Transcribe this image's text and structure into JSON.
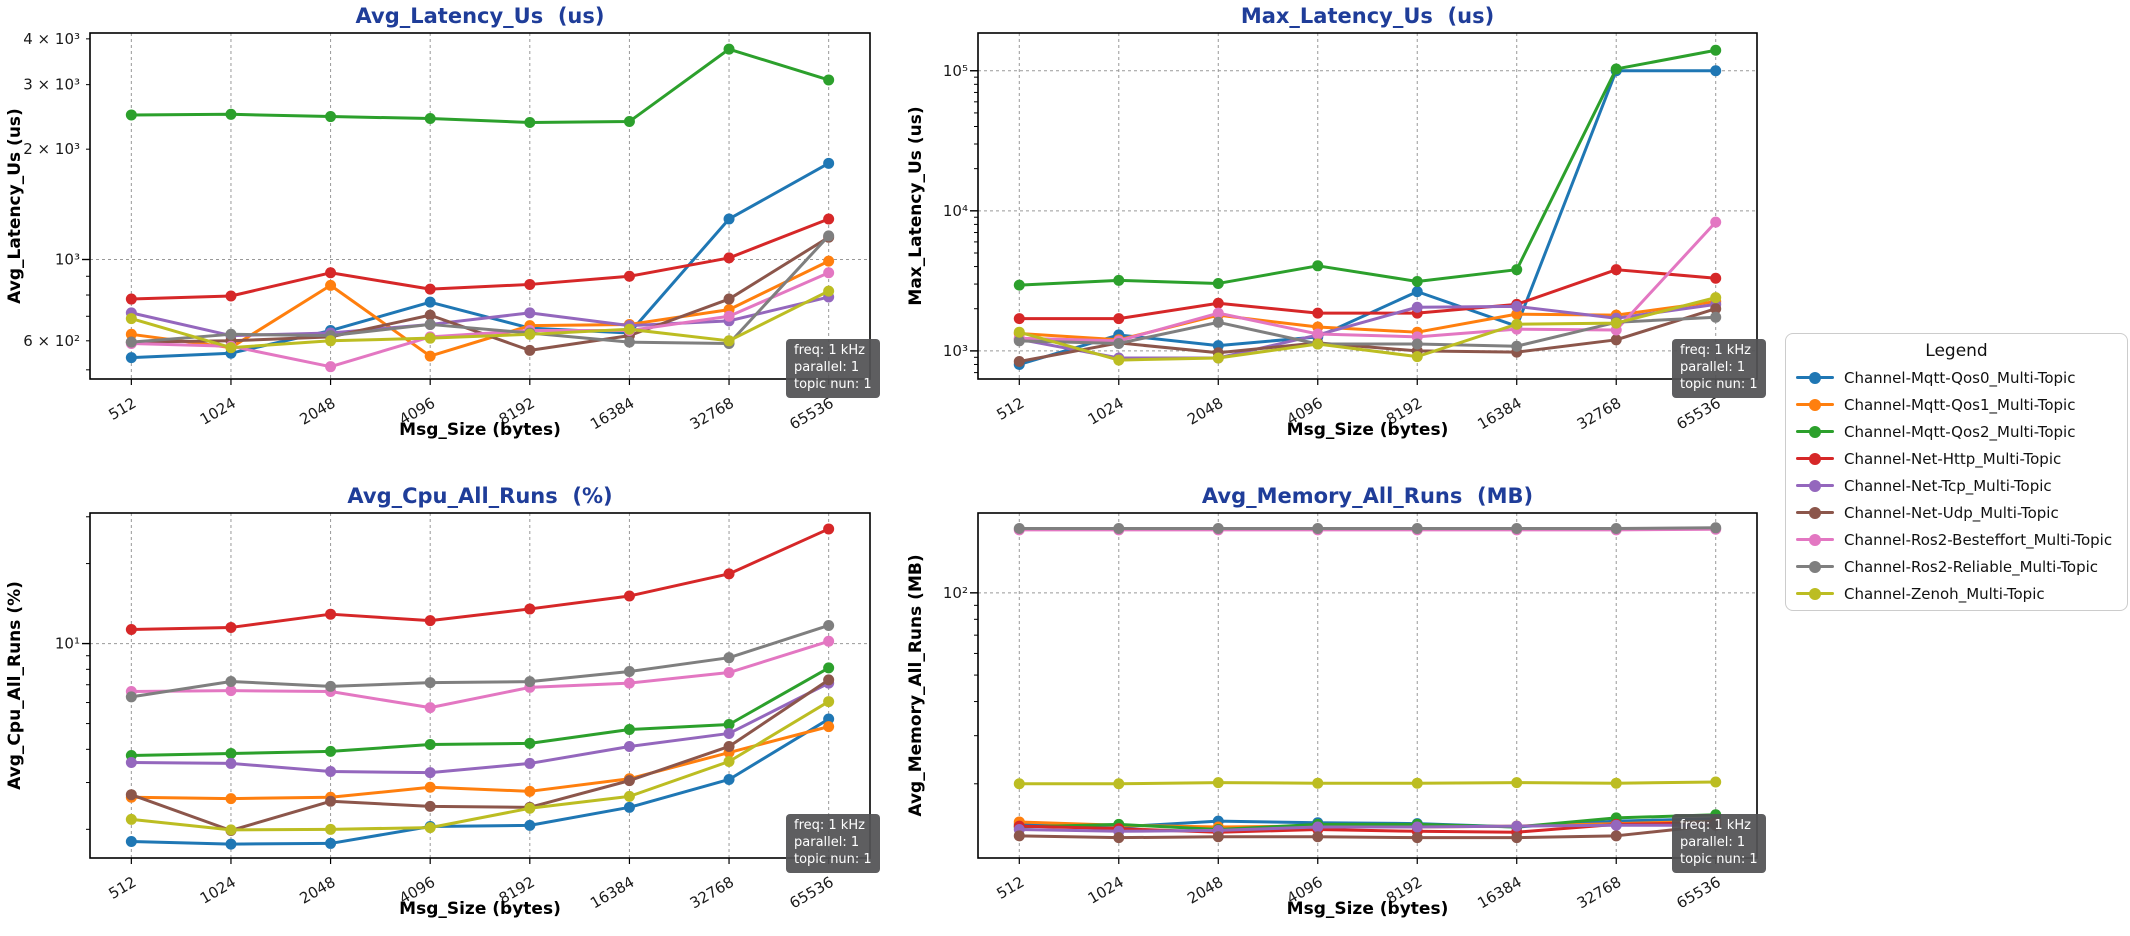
{
  "styles": {
    "title_color": "#1f3d99",
    "grid_color": "#999999",
    "annotation_bg": "#525254",
    "axis_color": "#000000",
    "tick_label_color": "#1a1a1a"
  },
  "annotation": {
    "line1": "freq: 1 kHz",
    "line2": "parallel: 1",
    "line3": "topic nun: 1"
  },
  "legend": {
    "title": "Legend",
    "entries": [
      {
        "label": "Channel-Mqtt-Qos0_Multi-Topic",
        "color": "#1f77b4"
      },
      {
        "label": "Channel-Mqtt-Qos1_Multi-Topic",
        "color": "#ff7f0e"
      },
      {
        "label": "Channel-Mqtt-Qos2_Multi-Topic",
        "color": "#2ca02c"
      },
      {
        "label": "Channel-Net-Http_Multi-Topic",
        "color": "#d62728"
      },
      {
        "label": "Channel-Net-Tcp_Multi-Topic",
        "color": "#9467bd"
      },
      {
        "label": "Channel-Net-Udp_Multi-Topic",
        "color": "#8c564b"
      },
      {
        "label": "Channel-Ros2-Besteffort_Multi-Topic",
        "color": "#e377c2"
      },
      {
        "label": "Channel-Ros2-Reliable_Multi-Topic",
        "color": "#7f7f7f"
      },
      {
        "label": "Channel-Zenoh_Multi-Topic",
        "color": "#bcbd22"
      }
    ]
  },
  "chart_data": [
    {
      "type": "line",
      "title": "Avg_Latency_Us  (us)",
      "xlabel": "Msg_Size (bytes)",
      "ylabel": "Avg_Latency_Us (us)",
      "yscale": "log",
      "ylim": [
        472,
        4150
      ],
      "grid": true,
      "grid_y": [
        1000
      ],
      "yticks": [
        {
          "v": 600,
          "label": "6 × 10²"
        },
        {
          "v": 1000,
          "label": "10³"
        },
        {
          "v": 2000,
          "label": "2 × 10³"
        },
        {
          "v": 3000,
          "label": "3 × 10³"
        },
        {
          "v": 4000,
          "label": "4 × 10³"
        }
      ],
      "categories": [
        "512",
        "1024",
        "2048",
        "4096",
        "8192",
        "16384",
        "32768",
        "65536"
      ],
      "series": [
        {
          "name": "Channel-Mqtt-Qos0_Multi-Topic",
          "color": "#1f77b4",
          "values": [
            540,
            555,
            640,
            765,
            650,
            630,
            1290,
            1830
          ]
        },
        {
          "name": "Channel-Mqtt-Qos1_Multi-Topic",
          "color": "#ff7f0e",
          "values": [
            625,
            575,
            850,
            545,
            660,
            665,
            730,
            990
          ]
        },
        {
          "name": "Channel-Mqtt-Qos2_Multi-Topic",
          "color": "#2ca02c",
          "values": [
            2480,
            2490,
            2455,
            2425,
            2365,
            2380,
            3750,
            3090
          ]
        },
        {
          "name": "Channel-Net-Http_Multi-Topic",
          "color": "#d62728",
          "values": [
            780,
            795,
            920,
            830,
            855,
            900,
            1010,
            1290
          ]
        },
        {
          "name": "Channel-Net-Tcp_Multi-Topic",
          "color": "#9467bd",
          "values": [
            715,
            620,
            630,
            665,
            715,
            660,
            680,
            790
          ]
        },
        {
          "name": "Channel-Net-Udp_Multi-Topic",
          "color": "#8c564b",
          "values": [
            595,
            600,
            615,
            705,
            565,
            620,
            780,
            1150
          ]
        },
        {
          "name": "Channel-Ros2-Besteffort_Multi-Topic",
          "color": "#e377c2",
          "values": [
            590,
            580,
            510,
            615,
            640,
            640,
            700,
            920
          ]
        },
        {
          "name": "Channel-Ros2-Reliable_Multi-Topic",
          "color": "#7f7f7f",
          "values": [
            595,
            625,
            620,
            665,
            630,
            595,
            590,
            1160
          ]
        },
        {
          "name": "Channel-Zenoh_Multi-Topic",
          "color": "#bcbd22",
          "values": [
            690,
            575,
            600,
            610,
            625,
            645,
            600,
            820
          ]
        }
      ]
    },
    {
      "type": "line",
      "title": "Max_Latency_Us  (us)",
      "xlabel": "Msg_Size (bytes)",
      "ylabel": "Max_Latency_Us (us)",
      "yscale": "log",
      "ylim": [
        630,
        186000
      ],
      "grid": true,
      "grid_y": [
        1000,
        10000,
        100000
      ],
      "yticks": [
        {
          "v": 1000,
          "label": "10³"
        },
        {
          "v": 10000,
          "label": "10⁴"
        },
        {
          "v": 100000,
          "label": "10⁵"
        }
      ],
      "categories": [
        "512",
        "1024",
        "2048",
        "4096",
        "8192",
        "16384",
        "32768",
        "65536"
      ],
      "series": [
        {
          "name": "Channel-Mqtt-Qos0_Multi-Topic",
          "color": "#1f77b4",
          "values": [
            800,
            1300,
            1090,
            1260,
            2650,
            1500,
            100000,
            100000
          ]
        },
        {
          "name": "Channel-Mqtt-Qos1_Multi-Topic",
          "color": "#ff7f0e",
          "values": [
            1330,
            1200,
            1800,
            1480,
            1360,
            1830,
            1800,
            2250
          ]
        },
        {
          "name": "Channel-Mqtt-Qos2_Multi-Topic",
          "color": "#2ca02c",
          "values": [
            2950,
            3190,
            3030,
            4050,
            3130,
            3800,
            103000,
            140000
          ]
        },
        {
          "name": "Channel-Net-Http_Multi-Topic",
          "color": "#d62728",
          "values": [
            1700,
            1700,
            2190,
            1860,
            1860,
            2150,
            3800,
            3300
          ]
        },
        {
          "name": "Channel-Net-Tcp_Multi-Topic",
          "color": "#9467bd",
          "values": [
            1210,
            890,
            890,
            1300,
            2050,
            2080,
            1710,
            2150
          ]
        },
        {
          "name": "Channel-Net-Udp_Multi-Topic",
          "color": "#8c564b",
          "values": [
            840,
            1140,
            970,
            1140,
            1000,
            980,
            1200,
            2000
          ]
        },
        {
          "name": "Channel-Ros2-Besteffort_Multi-Topic",
          "color": "#e377c2",
          "values": [
            1230,
            1180,
            1860,
            1320,
            1260,
            1430,
            1410,
            8300
          ]
        },
        {
          "name": "Channel-Ros2-Reliable_Multi-Topic",
          "color": "#7f7f7f",
          "values": [
            1180,
            1130,
            1600,
            1120,
            1120,
            1080,
            1600,
            1740
          ]
        },
        {
          "name": "Channel-Zenoh_Multi-Topic",
          "color": "#bcbd22",
          "values": [
            1360,
            860,
            890,
            1120,
            910,
            1550,
            1580,
            2400
          ]
        }
      ]
    },
    {
      "type": "line",
      "title": "Avg_Cpu_All_Runs  (%)",
      "xlabel": "Msg_Size (bytes)",
      "ylabel": "Avg_Cpu_All_Runs (%)",
      "yscale": "log",
      "ylim": [
        1.56,
        31
      ],
      "grid": true,
      "grid_y": [
        10
      ],
      "yticks": [
        {
          "v": 10,
          "label": "10¹"
        }
      ],
      "categories": [
        "512",
        "1024",
        "2048",
        "4096",
        "8192",
        "16384",
        "32768",
        "65536"
      ],
      "series": [
        {
          "name": "Channel-Mqtt-Qos0_Multi-Topic",
          "color": "#1f77b4",
          "values": [
            1.8,
            1.76,
            1.77,
            2.05,
            2.07,
            2.42,
            3.08,
            5.2
          ]
        },
        {
          "name": "Channel-Mqtt-Qos1_Multi-Topic",
          "color": "#ff7f0e",
          "values": [
            2.64,
            2.61,
            2.64,
            2.88,
            2.78,
            3.1,
            3.89,
            4.87
          ]
        },
        {
          "name": "Channel-Mqtt-Qos2_Multi-Topic",
          "color": "#2ca02c",
          "values": [
            3.79,
            3.86,
            3.93,
            4.17,
            4.21,
            4.75,
            4.96,
            8.1
          ]
        },
        {
          "name": "Channel-Net-Http_Multi-Topic",
          "color": "#d62728",
          "values": [
            11.3,
            11.5,
            12.9,
            12.2,
            13.5,
            15.1,
            18.3,
            27.0
          ]
        },
        {
          "name": "Channel-Net-Tcp_Multi-Topic",
          "color": "#9467bd",
          "values": [
            3.57,
            3.54,
            3.3,
            3.27,
            3.54,
            4.1,
            4.59,
            7.1
          ]
        },
        {
          "name": "Channel-Net-Udp_Multi-Topic",
          "color": "#8c564b",
          "values": [
            2.7,
            1.98,
            2.55,
            2.44,
            2.42,
            3.05,
            4.1,
            7.3
          ]
        },
        {
          "name": "Channel-Ros2-Besteffort_Multi-Topic",
          "color": "#e377c2",
          "values": [
            6.6,
            6.65,
            6.6,
            5.74,
            6.84,
            7.1,
            7.78,
            10.2
          ]
        },
        {
          "name": "Channel-Ros2-Reliable_Multi-Topic",
          "color": "#7f7f7f",
          "values": [
            6.3,
            7.2,
            6.9,
            7.13,
            7.19,
            7.85,
            8.85,
            11.7
          ]
        },
        {
          "name": "Channel-Zenoh_Multi-Topic",
          "color": "#bcbd22",
          "values": [
            2.18,
            1.99,
            2.0,
            2.03,
            2.4,
            2.66,
            3.6,
            6.05
          ]
        }
      ]
    },
    {
      "type": "line",
      "title": "Avg_Memory_All_Runs  (MB)",
      "xlabel": "Msg_Size (bytes)",
      "ylabel": "Avg_Memory_All_Runs (MB)",
      "yscale": "log",
      "ylim": [
        10.7,
        196
      ],
      "grid": true,
      "grid_y": [
        100
      ],
      "yticks": [
        {
          "v": 100,
          "label": "10²"
        }
      ],
      "categories": [
        "512",
        "1024",
        "2048",
        "4096",
        "8192",
        "16384",
        "32768",
        "65536"
      ],
      "series": [
        {
          "name": "Channel-Mqtt-Qos0_Multi-Topic",
          "color": "#1f77b4",
          "values": [
            14.2,
            13.9,
            14.6,
            14.4,
            14.3,
            13.9,
            14.6,
            14.9
          ]
        },
        {
          "name": "Channel-Mqtt-Qos1_Multi-Topic",
          "color": "#ff7f0e",
          "values": [
            14.5,
            14.1,
            13.9,
            14.0,
            13.9,
            14.0,
            14.3,
            14.6
          ]
        },
        {
          "name": "Channel-Mqtt-Qos2_Multi-Topic",
          "color": "#2ca02c",
          "values": [
            13.9,
            14.2,
            13.6,
            14.2,
            14.2,
            13.9,
            15.0,
            15.4
          ]
        },
        {
          "name": "Channel-Net-Http_Multi-Topic",
          "color": "#d62728",
          "values": [
            14.0,
            13.7,
            13.3,
            13.6,
            13.4,
            13.3,
            14.2,
            14.4
          ]
        },
        {
          "name": "Channel-Net-Tcp_Multi-Topic",
          "color": "#9467bd",
          "values": [
            13.6,
            13.4,
            13.5,
            13.9,
            13.9,
            14.0,
            14.1,
            14.1
          ]
        },
        {
          "name": "Channel-Net-Udp_Multi-Topic",
          "color": "#8c564b",
          "values": [
            12.9,
            12.7,
            12.8,
            12.8,
            12.7,
            12.7,
            12.9,
            14.1
          ]
        },
        {
          "name": "Channel-Ros2-Besteffort_Multi-Topic",
          "color": "#e377c2",
          "values": [
            170,
            170,
            170,
            170,
            170,
            170,
            170,
            171
          ]
        },
        {
          "name": "Channel-Ros2-Reliable_Multi-Topic",
          "color": "#7f7f7f",
          "values": [
            172,
            172,
            172,
            172,
            172,
            172,
            172,
            173
          ]
        },
        {
          "name": "Channel-Zenoh_Multi-Topic",
          "color": "#bcbd22",
          "values": [
            20.0,
            20.0,
            20.2,
            20.1,
            20.1,
            20.2,
            20.1,
            20.3
          ]
        }
      ]
    }
  ]
}
